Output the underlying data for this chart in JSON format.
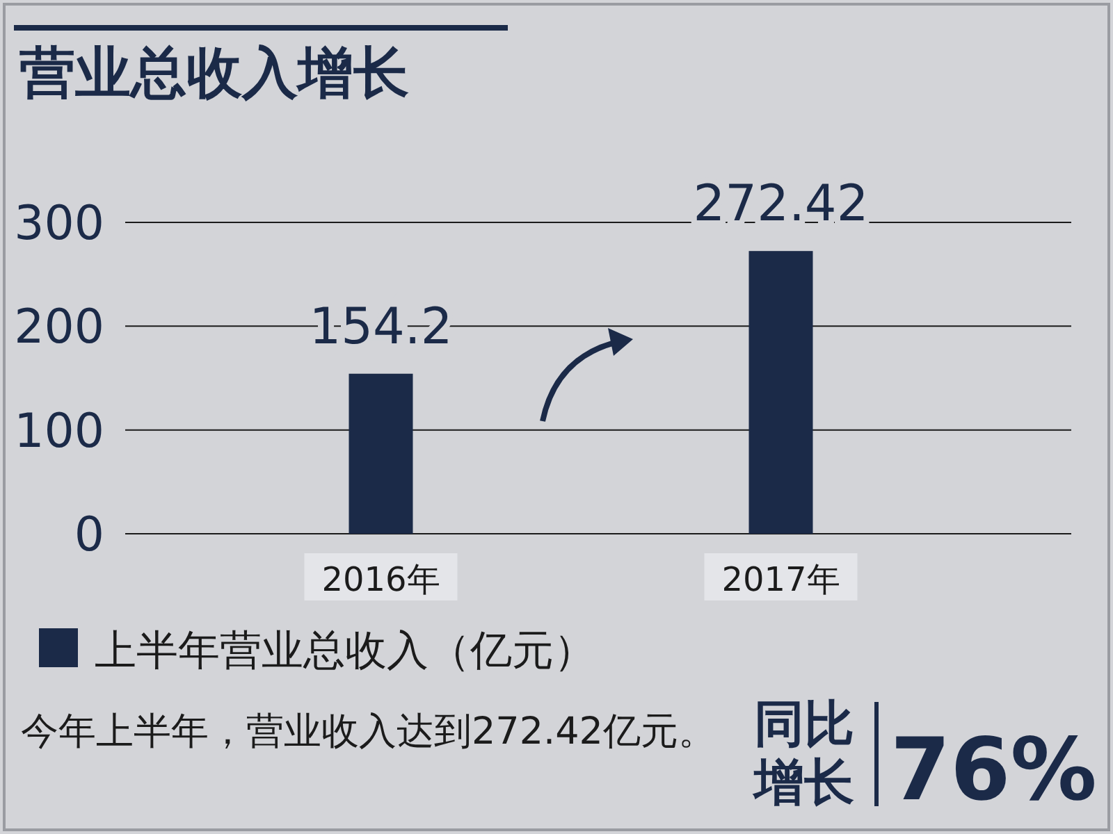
{
  "chart_data": {
    "type": "bar",
    "title": "营业总收入增长",
    "categories": [
      "2016年",
      "2017年"
    ],
    "series": [
      {
        "name": "上半年营业总收入（亿元）",
        "color": "#1b2a48",
        "values": [
          154.2,
          272.42
        ]
      }
    ],
    "ylim": [
      0,
      300
    ],
    "yticks": [
      0,
      100,
      200,
      300
    ],
    "data_labels": true,
    "grid": "y",
    "legend": "bottom left",
    "annotations": [
      "今年上半年，营业收入达到272.42亿元。",
      "同比增长",
      "76%"
    ]
  }
}
